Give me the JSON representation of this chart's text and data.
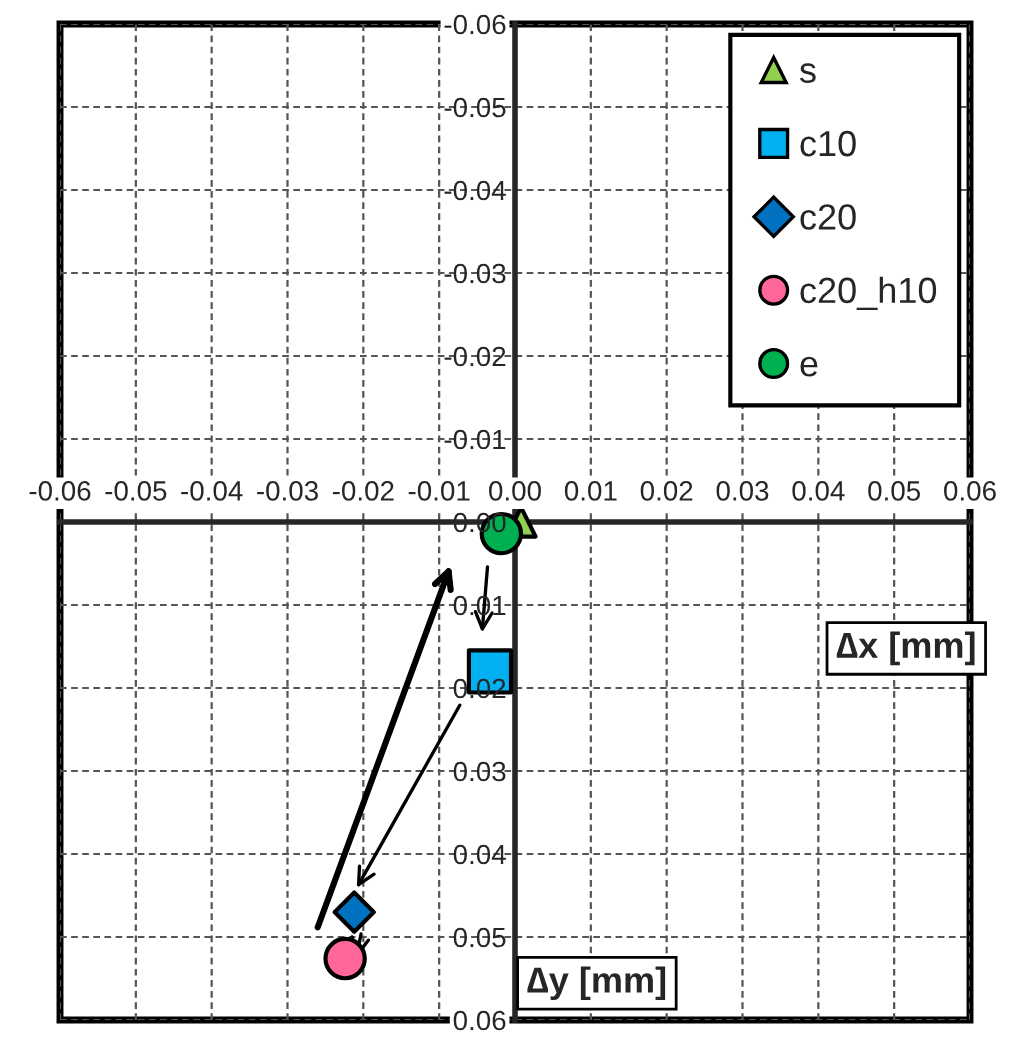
{
  "chart_data": {
    "type": "scatter",
    "xlabel": "∆x [mm]",
    "ylabel": "∆y [mm]",
    "xlim": [
      -0.06,
      0.06
    ],
    "ylim": [
      0.06,
      -0.06
    ],
    "xticks": [
      {
        "value": -0.06,
        "label": "-0.06"
      },
      {
        "value": -0.05,
        "label": "-0.05"
      },
      {
        "value": -0.04,
        "label": "-0.04"
      },
      {
        "value": -0.03,
        "label": "-0.03"
      },
      {
        "value": -0.02,
        "label": "-0.02"
      },
      {
        "value": -0.01,
        "label": "-0.01"
      },
      {
        "value": 0,
        "label": "0.00"
      },
      {
        "value": 0.01,
        "label": "0.01"
      },
      {
        "value": 0.02,
        "label": "0.02"
      },
      {
        "value": 0.03,
        "label": "0.03"
      },
      {
        "value": 0.04,
        "label": "0.04"
      },
      {
        "value": 0.05,
        "label": "0.05"
      },
      {
        "value": 0.06,
        "label": "0.06"
      }
    ],
    "yticks": [
      {
        "value": -0.06,
        "label": "-0.06"
      },
      {
        "value": -0.05,
        "label": "-0.05"
      },
      {
        "value": -0.04,
        "label": "-0.04"
      },
      {
        "value": -0.03,
        "label": "-0.03"
      },
      {
        "value": -0.02,
        "label": "-0.02"
      },
      {
        "value": -0.01,
        "label": "-0.01"
      },
      {
        "value": 0,
        "label": "0.00"
      },
      {
        "value": 0.01,
        "label": "0.01"
      },
      {
        "value": 0.02,
        "label": "0.02"
      },
      {
        "value": 0.03,
        "label": "0.03"
      },
      {
        "value": 0.04,
        "label": "0.04"
      },
      {
        "value": 0.05,
        "label": "0.05"
      },
      {
        "value": 0.06,
        "label": "0.06"
      }
    ],
    "grid": true,
    "legend": "top right",
    "series": [
      {
        "name": "s",
        "color": "#92d050",
        "marker": "triangle",
        "x": [
          0.0008
        ],
        "values": [
          0.0
        ]
      },
      {
        "name": "c10",
        "color": "#00b0f0",
        "marker": "square",
        "x": [
          -0.0033
        ],
        "values": [
          0.018
        ]
      },
      {
        "name": "c20",
        "color": "#0070c0",
        "marker": "diamond",
        "x": [
          -0.0212
        ],
        "values": [
          0.047
        ]
      },
      {
        "name": "c20_h10",
        "color": "#ff6699",
        "marker": "circle",
        "x": [
          -0.0224
        ],
        "values": [
          0.0526
        ]
      },
      {
        "name": "e",
        "color": "#00b050",
        "marker": "circle",
        "x": [
          -0.0018
        ],
        "values": [
          0.0014
        ]
      }
    ]
  }
}
